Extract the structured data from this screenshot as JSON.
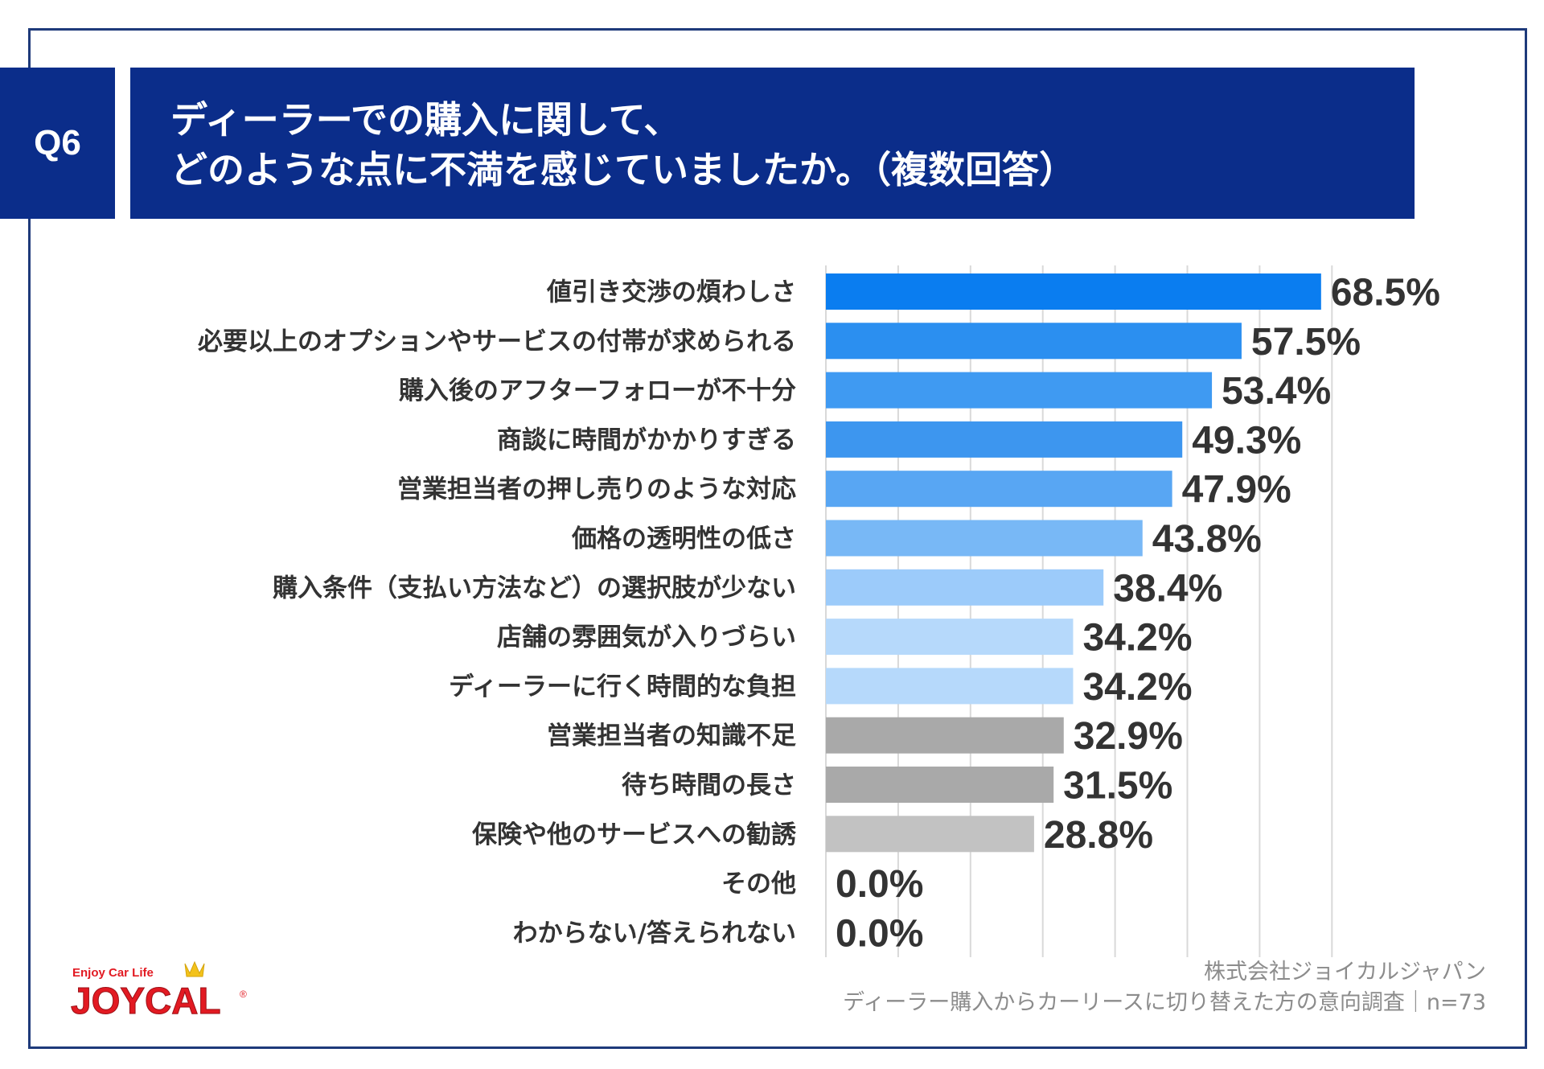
{
  "question": {
    "badge": "Q6",
    "line1": "ディーラーでの購入に関して、",
    "line2": "どのような点に不満を感じていましたか。（複数回答）"
  },
  "chart_data": {
    "type": "bar",
    "orientation": "horizontal",
    "categories": [
      "値引き交渉の煩わしさ",
      "必要以上のオプションやサービスの付帯が求められる",
      "購入後のアフターフォローが不十分",
      "商談に時間がかかりすぎる",
      "営業担当者の押し売りのような対応",
      "価格の透明性の低さ",
      "購入条件（支払い方法など）の選択肢が少ない",
      "店舗の雰囲気が入りづらい",
      "ディーラーに行く時間的な負担",
      "営業担当者の知識不足",
      "待ち時間の長さ",
      "保険や他のサービスへの勧誘",
      "その他",
      "わからない/答えられない"
    ],
    "values": [
      68.5,
      57.5,
      53.4,
      49.3,
      47.9,
      43.8,
      38.4,
      34.2,
      34.2,
      32.9,
      31.5,
      28.8,
      0.0,
      0.0
    ],
    "value_labels": [
      "68.5%",
      "57.5%",
      "53.4%",
      "49.3%",
      "47.9%",
      "43.8%",
      "38.4%",
      "34.2%",
      "34.2%",
      "32.9%",
      "31.5%",
      "28.8%",
      "0.0%",
      "0.0%"
    ],
    "bar_colors": [
      "#0a7df0",
      "#2b8ff0",
      "#3f9af2",
      "#3d96ef",
      "#58a6f3",
      "#78b8f6",
      "#9ccbfa",
      "#b6d9fb",
      "#b6d9fb",
      "#a9a9a9",
      "#a9a9a9",
      "#c2c2c2",
      "#c2c2c2",
      "#c2c2c2"
    ],
    "xlim": [
      0,
      70
    ],
    "grid": true,
    "grid_step": 10,
    "unit": "%"
  },
  "footer": {
    "company": "株式会社ジョイカルジャパン",
    "survey": "ディーラー購入からカーリースに切り替えた方の意向調査｜n=73"
  },
  "logo": {
    "tagline": "Enjoy Car Life",
    "brand": "JOYCAL",
    "mark": "®"
  }
}
